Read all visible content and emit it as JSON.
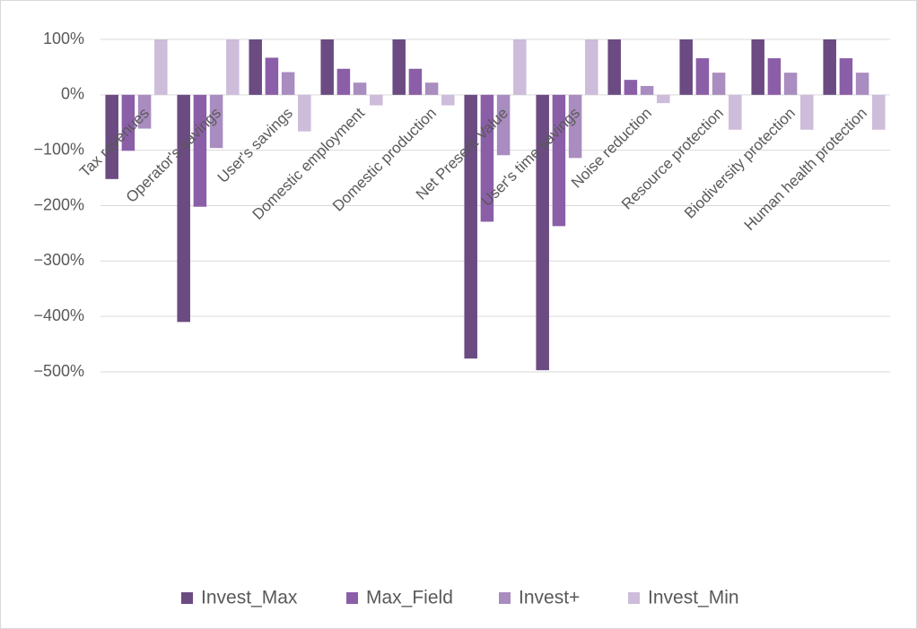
{
  "chart_data": {
    "type": "bar",
    "categories": [
      "Tax revenues",
      "Operator's savings",
      "User's savings",
      "Domestic employment",
      "Domestic production",
      "Net Present Value",
      "User's time savings",
      "Noise reduction",
      "Resource protection",
      "Biodiversity protection",
      "Human health protection"
    ],
    "series": [
      {
        "name": "Invest_Max",
        "color": "#6b4b82",
        "values": [
          -152,
          -410,
          100,
          100,
          100,
          -476,
          -497,
          100,
          100,
          100,
          100
        ]
      },
      {
        "name": "Max_Field",
        "color": "#8b5ea8",
        "values": [
          -101,
          -202,
          67,
          47,
          47,
          -229,
          -237,
          27,
          66,
          66,
          66
        ]
      },
      {
        "name": "Invest+",
        "color": "#a98cc0",
        "values": [
          -61,
          -96,
          41,
          22,
          22,
          -109,
          -114,
          16,
          40,
          40,
          40
        ]
      },
      {
        "name": "Invest_Min",
        "color": "#cdbcda",
        "values": [
          100,
          100,
          -66,
          -19,
          -19,
          100,
          100,
          -15,
          -63,
          -63,
          -63
        ]
      }
    ],
    "ylim": [
      -500,
      100
    ],
    "yticks": [
      {
        "value": 100,
        "label": "100%"
      },
      {
        "value": 0,
        "label": "0%"
      },
      {
        "value": -100,
        "label": "−100%"
      },
      {
        "value": -200,
        "label": "−200%"
      },
      {
        "value": -300,
        "label": "−300%"
      },
      {
        "value": -400,
        "label": "−400%"
      },
      {
        "value": -500,
        "label": "−500%"
      }
    ],
    "grid": true,
    "legend": "bottom"
  }
}
